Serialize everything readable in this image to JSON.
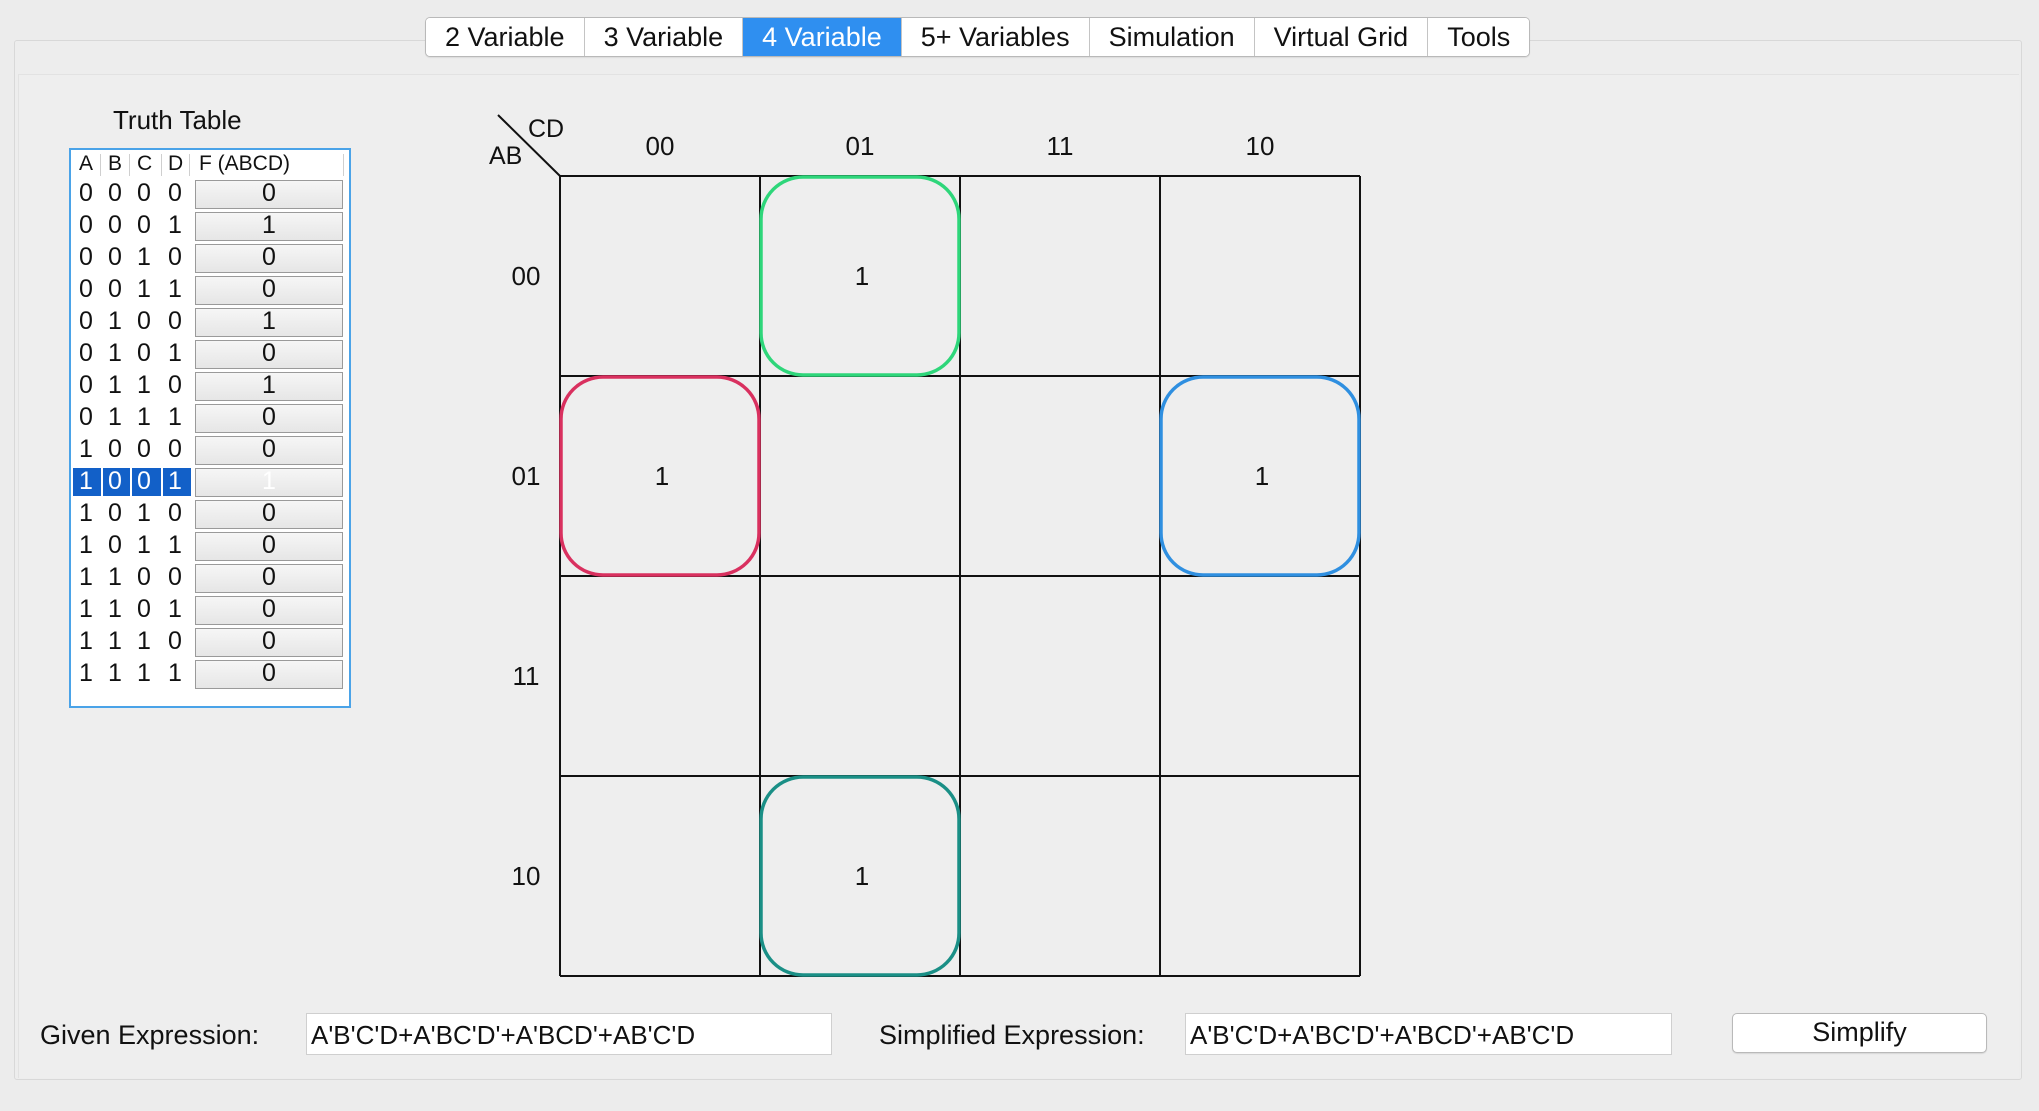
{
  "tabs": [
    {
      "label": "2 Variable",
      "active": false
    },
    {
      "label": "3 Variable",
      "active": false
    },
    {
      "label": "4 Variable",
      "active": true
    },
    {
      "label": "5+ Variables",
      "active": false
    },
    {
      "label": "Simulation",
      "active": false
    },
    {
      "label": "Virtual Grid",
      "active": false
    },
    {
      "label": "Tools",
      "active": false
    }
  ],
  "truth_table": {
    "title": "Truth Table",
    "headers": [
      "A",
      "B",
      "C",
      "D",
      "F (ABCD)"
    ],
    "selected_row": 9,
    "rows": [
      {
        "bits": [
          "0",
          "0",
          "0",
          "0"
        ],
        "f": "0"
      },
      {
        "bits": [
          "0",
          "0",
          "0",
          "1"
        ],
        "f": "1"
      },
      {
        "bits": [
          "0",
          "0",
          "1",
          "0"
        ],
        "f": "0"
      },
      {
        "bits": [
          "0",
          "0",
          "1",
          "1"
        ],
        "f": "0"
      },
      {
        "bits": [
          "0",
          "1",
          "0",
          "0"
        ],
        "f": "1"
      },
      {
        "bits": [
          "0",
          "1",
          "0",
          "1"
        ],
        "f": "0"
      },
      {
        "bits": [
          "0",
          "1",
          "1",
          "0"
        ],
        "f": "1"
      },
      {
        "bits": [
          "0",
          "1",
          "1",
          "1"
        ],
        "f": "0"
      },
      {
        "bits": [
          "1",
          "0",
          "0",
          "0"
        ],
        "f": "0"
      },
      {
        "bits": [
          "1",
          "0",
          "0",
          "1"
        ],
        "f": "1"
      },
      {
        "bits": [
          "1",
          "0",
          "1",
          "0"
        ],
        "f": "0"
      },
      {
        "bits": [
          "1",
          "0",
          "1",
          "1"
        ],
        "f": "0"
      },
      {
        "bits": [
          "1",
          "1",
          "0",
          "0"
        ],
        "f": "0"
      },
      {
        "bits": [
          "1",
          "1",
          "0",
          "1"
        ],
        "f": "0"
      },
      {
        "bits": [
          "1",
          "1",
          "1",
          "0"
        ],
        "f": "0"
      },
      {
        "bits": [
          "1",
          "1",
          "1",
          "1"
        ],
        "f": "0"
      }
    ]
  },
  "kmap": {
    "col_var": "CD",
    "row_var": "AB",
    "col_labels": [
      "00",
      "01",
      "11",
      "10"
    ],
    "row_labels": [
      "00",
      "01",
      "11",
      "10"
    ],
    "cells": [
      [
        "",
        "1",
        "",
        ""
      ],
      [
        "1",
        "",
        "",
        "1"
      ],
      [
        "",
        "",
        "",
        ""
      ],
      [
        "",
        "1",
        "",
        ""
      ]
    ],
    "groups": [
      {
        "row": 0,
        "col": 1,
        "color": "#2ed67a"
      },
      {
        "row": 1,
        "col": 0,
        "color": "#d9305f"
      },
      {
        "row": 1,
        "col": 3,
        "color": "#2f8fe0"
      },
      {
        "row": 3,
        "col": 1,
        "color": "#1a8f86"
      }
    ]
  },
  "given_expression": {
    "label": "Given Expression:",
    "value": "A'B'C'D+A'BC'D'+A'BCD'+AB'C'D"
  },
  "simplified_expression": {
    "label": "Simplified Expression:",
    "value": "A'B'C'D+A'BC'D'+A'BCD'+AB'C'D"
  },
  "simplify_button": {
    "label": "Simplify"
  }
}
